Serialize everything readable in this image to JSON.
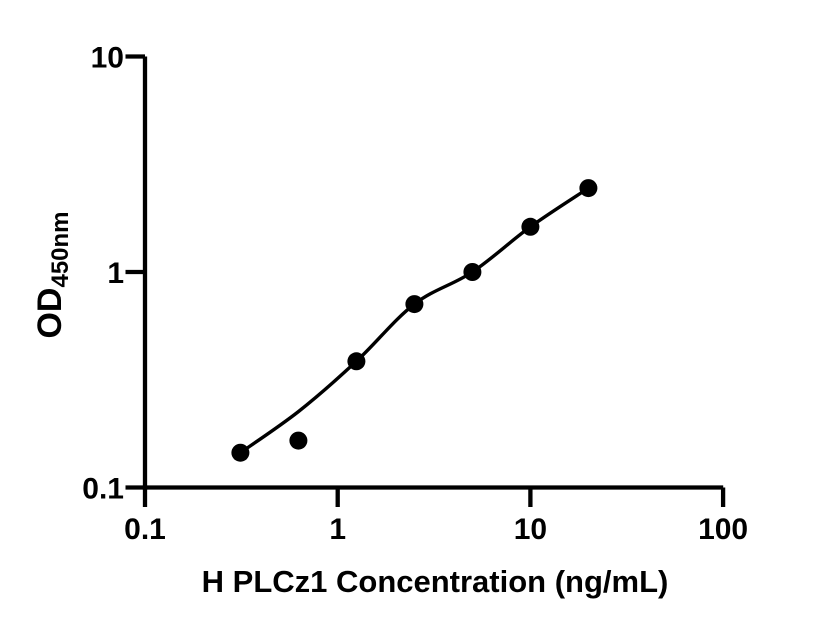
{
  "figure": {
    "background": "#ffffff",
    "foreground": "#000000"
  },
  "chart_data": {
    "type": "scatter",
    "subtype": "standard-curve-with-fit-line",
    "xlabel": "H PLCz1 Concentration (ng/mL)",
    "ylabel": "OD",
    "ylabel_subscript": "450nm",
    "x_scale": "log",
    "y_scale": "log",
    "xlim": [
      0.1,
      100
    ],
    "ylim": [
      0.1,
      10
    ],
    "grid": false,
    "legend": false,
    "marker": "filled-circle",
    "color": "#000000",
    "x_ticks": [
      {
        "value": 0.1,
        "label": "0.1"
      },
      {
        "value": 1,
        "label": "1"
      },
      {
        "value": 10,
        "label": "10"
      },
      {
        "value": 100,
        "label": "100"
      }
    ],
    "y_ticks": [
      {
        "value": 0.1,
        "label": "0.1"
      },
      {
        "value": 1,
        "label": "1"
      },
      {
        "value": 10,
        "label": "10"
      }
    ],
    "points": [
      {
        "x": 0.3125,
        "y": 0.145
      },
      {
        "x": 0.625,
        "y": 0.165
      },
      {
        "x": 1.25,
        "y": 0.385
      },
      {
        "x": 2.5,
        "y": 0.71
      },
      {
        "x": 5,
        "y": 1.0
      },
      {
        "x": 10,
        "y": 1.62
      },
      {
        "x": 20,
        "y": 2.45
      }
    ],
    "fit_curve": [
      {
        "x": 0.3125,
        "y": 0.145
      },
      {
        "x": 0.625,
        "y": 0.225
      },
      {
        "x": 1.25,
        "y": 0.385
      },
      {
        "x": 2.5,
        "y": 0.71
      },
      {
        "x": 5,
        "y": 1.0
      },
      {
        "x": 10,
        "y": 1.62
      },
      {
        "x": 20,
        "y": 2.45
      }
    ]
  }
}
